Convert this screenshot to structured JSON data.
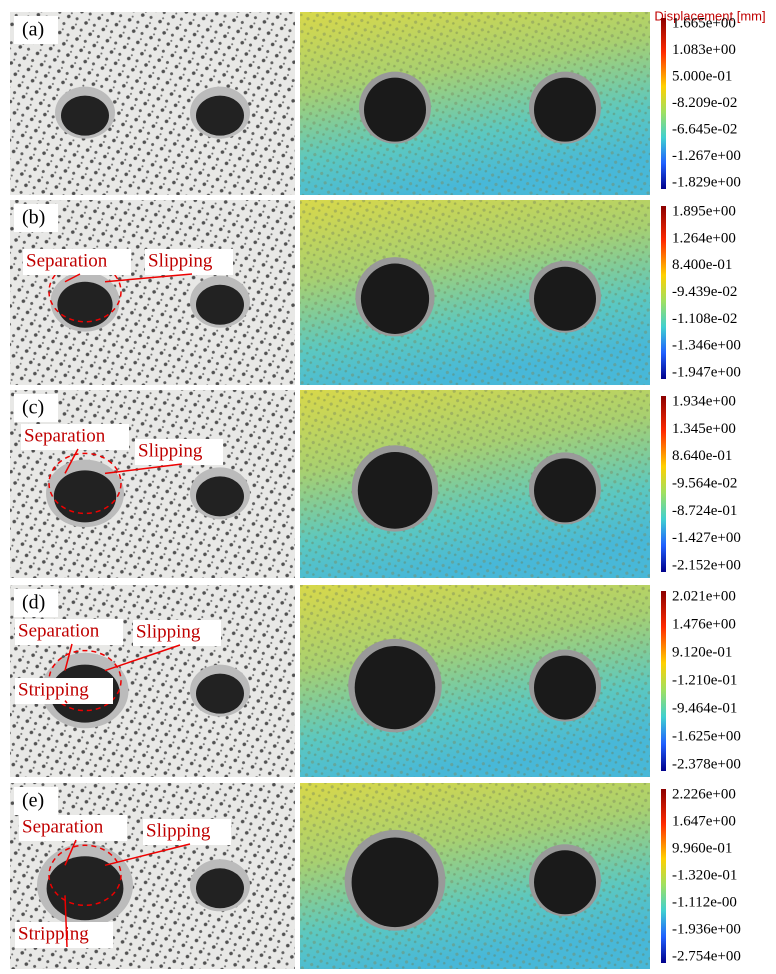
{
  "title": "Displacement [mm]",
  "rows": [
    {
      "label": "(a)",
      "annotations": [],
      "colorbar_labels": [
        "1.665e+00",
        "1.083e+00",
        "5.000e-01",
        "-8.209e-02",
        "-6.645e-02",
        "-1.267e+00",
        "-1.829e+00"
      ]
    },
    {
      "label": "(b)",
      "annotations": [
        "Separation",
        "Slipping"
      ],
      "colorbar_labels": [
        "1.895e+00",
        "1.264e+00",
        "8.400e-01",
        "-9.439e-02",
        "-1.108e-02",
        "-1.346e+00",
        "-1.947e+00"
      ]
    },
    {
      "label": "(c)",
      "annotations": [
        "Separation",
        "Slipping"
      ],
      "colorbar_labels": [
        "1.934e+00",
        "1.345e+00",
        "8.640e-01",
        "-9.564e-02",
        "-8.724e-01",
        "-1.427e+00",
        "-2.152e+00"
      ]
    },
    {
      "label": "(d)",
      "annotations": [
        "Separation",
        "Slipping",
        "Stripping"
      ],
      "colorbar_labels": [
        "2.021e+00",
        "1.476e+00",
        "9.120e-01",
        "-1.210e-01",
        "-9.464e-01",
        "-1.625e+00",
        "-2.378e+00"
      ]
    },
    {
      "label": "(e)",
      "annotations": [
        "Separation",
        "Slipping",
        "Stripping"
      ],
      "colorbar_labels": [
        "2.226e+00",
        "1.647e+00",
        "9.960e-01",
        "-1.320e-01",
        "-1.112e-00",
        "-1.936e+00",
        "-2.754e+00"
      ]
    }
  ]
}
